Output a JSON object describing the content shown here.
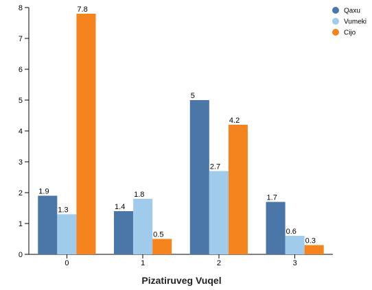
{
  "chart_data": {
    "type": "bar",
    "categories": [
      "0",
      "1",
      "2",
      "3"
    ],
    "series": [
      {
        "name": "Qaxu",
        "values": [
          1.9,
          1.4,
          5,
          1.7
        ],
        "color": "#4a76a8"
      },
      {
        "name": "Vumeki",
        "values": [
          1.3,
          1.8,
          2.7,
          0.6
        ],
        "color": "#a0cbea"
      },
      {
        "name": "Cijo",
        "values": [
          7.8,
          0.5,
          4.2,
          0.3
        ],
        "color": "#f5841f"
      }
    ],
    "xlabel": "Pizatiruveg Vuqel",
    "ylabel": "",
    "ylim": [
      0,
      8
    ],
    "yticks": [
      0,
      1,
      2,
      3,
      4,
      5,
      6,
      7,
      8
    ],
    "grid": false,
    "legend_position": "top-right",
    "data_labels": true
  }
}
